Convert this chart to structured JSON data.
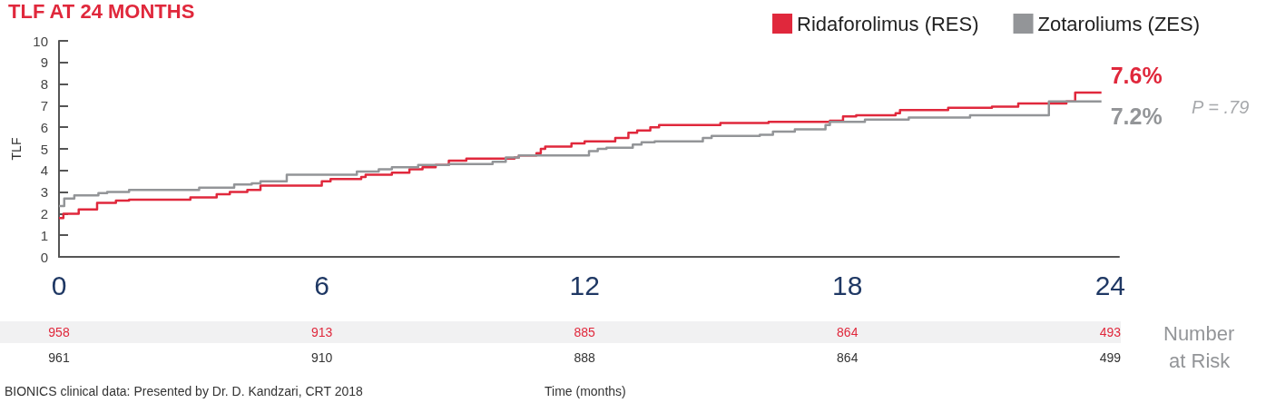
{
  "chart_data": {
    "type": "step",
    "title": "TLF AT 24 MONTHS",
    "ylabel": "TLF",
    "xlim": [
      0,
      24.2
    ],
    "xticks": [
      0,
      6,
      12,
      18,
      24
    ],
    "ylim": [
      0,
      10
    ],
    "yticks": [
      0,
      1,
      2,
      3,
      4,
      5,
      6,
      7,
      8,
      9,
      10
    ],
    "grid": false,
    "legend": "top right",
    "marker": "none",
    "line_style": "solid",
    "series": [
      {
        "name": "Ridaforolimus (RES)",
        "color": "#e0283c",
        "x": [
          0,
          0.1,
          0.45,
          0.87,
          1.3,
          1.6,
          3.0,
          3.6,
          3.9,
          4.3,
          4.6,
          6.0,
          6.2,
          6.9,
          7.0,
          7.6,
          8.0,
          8.3,
          8.6,
          8.9,
          9.3,
          10.4,
          10.5,
          10.9,
          11.0,
          11.1,
          11.7,
          12.0,
          12.7,
          13.0,
          13.2,
          13.5,
          13.7,
          15.1,
          16.2,
          17.6,
          17.9,
          18.2,
          19.1,
          19.2,
          20.3,
          21.3,
          21.9,
          23.0,
          23.2,
          23.8
        ],
        "values": [
          1.8,
          2.0,
          2.2,
          2.5,
          2.6,
          2.65,
          2.75,
          2.9,
          3.0,
          3.1,
          3.3,
          3.5,
          3.6,
          3.7,
          3.8,
          3.9,
          4.05,
          4.15,
          4.25,
          4.45,
          4.55,
          4.6,
          4.7,
          4.8,
          5.0,
          5.1,
          5.25,
          5.35,
          5.5,
          5.75,
          5.85,
          6.0,
          6.1,
          6.2,
          6.25,
          6.3,
          6.5,
          6.55,
          6.65,
          6.8,
          6.9,
          6.95,
          7.1,
          7.2,
          7.6,
          7.6
        ],
        "value_labels": [
          null,
          null,
          null,
          null,
          null,
          null,
          null,
          null,
          null,
          null,
          null,
          null,
          null,
          null,
          null,
          null,
          null,
          null,
          null,
          null,
          null,
          null,
          null,
          null,
          null,
          null,
          null,
          null,
          null,
          null,
          null,
          null,
          null,
          null,
          null,
          null,
          null,
          null,
          null,
          null,
          null,
          null,
          null,
          null,
          null,
          "7.6%"
        ]
      },
      {
        "name": "Zotaroliums (ZES)",
        "color": "#939598",
        "x": [
          0,
          0.12,
          0.35,
          0.9,
          1.1,
          1.6,
          3.2,
          4.0,
          4.4,
          4.6,
          5.2,
          6.8,
          7.3,
          7.6,
          8.2,
          8.9,
          9.9,
          10.2,
          10.5,
          12.1,
          12.3,
          12.5,
          13.1,
          13.3,
          13.6,
          14.7,
          14.9,
          16.0,
          16.3,
          16.8,
          17.5,
          17.6,
          18.4,
          19.4,
          20.8,
          22.6,
          23.8
        ],
        "values": [
          2.35,
          2.7,
          2.85,
          2.95,
          3.0,
          3.1,
          3.2,
          3.35,
          3.4,
          3.5,
          3.8,
          3.95,
          4.05,
          4.15,
          4.25,
          4.3,
          4.4,
          4.6,
          4.7,
          4.9,
          5.0,
          5.05,
          5.2,
          5.3,
          5.35,
          5.5,
          5.6,
          5.65,
          5.8,
          5.9,
          6.1,
          6.25,
          6.35,
          6.45,
          6.55,
          7.2,
          7.2
        ],
        "value_labels": [
          null,
          null,
          null,
          null,
          null,
          null,
          null,
          null,
          null,
          null,
          null,
          null,
          null,
          null,
          null,
          null,
          null,
          null,
          null,
          null,
          null,
          null,
          null,
          null,
          null,
          null,
          null,
          null,
          null,
          null,
          null,
          null,
          null,
          null,
          null,
          null,
          "7.2%"
        ]
      }
    ],
    "annotations": [
      "P = .79",
      "Number at Risk",
      "BIONICS clinical data: Presented by Dr. D. Kandzari, CRT 2018",
      "Time (months)",
      "958",
      "913",
      "885",
      "864",
      "493",
      "961",
      "910",
      "888",
      "864",
      "499"
    ]
  }
}
